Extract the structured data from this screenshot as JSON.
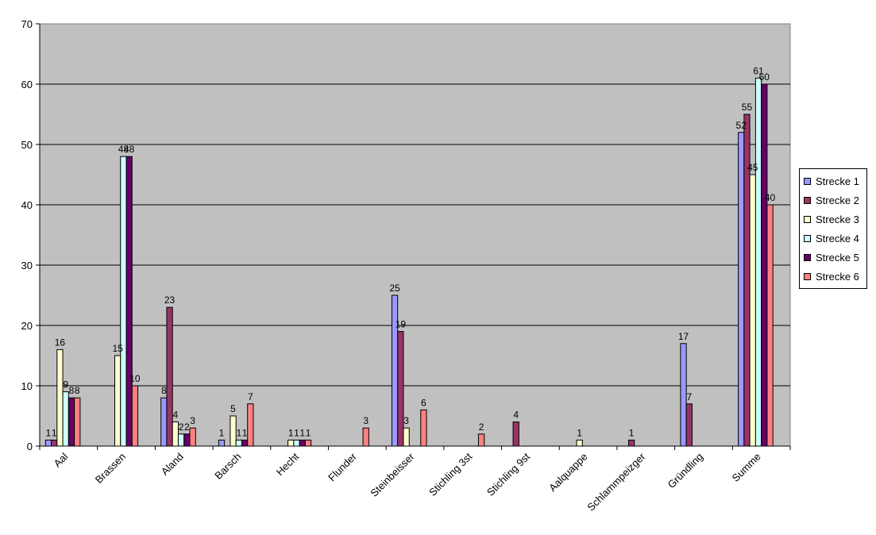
{
  "chart_data": {
    "type": "bar",
    "title": "",
    "xlabel": "",
    "ylabel": "",
    "ylim": [
      0,
      70
    ],
    "yticks": [
      0,
      10,
      20,
      30,
      40,
      50,
      60,
      70
    ],
    "grid": true,
    "legend_position": "right",
    "plot_background": "#c0c0c0",
    "categories": [
      "Aal",
      "Brassen",
      "Aland",
      "Barsch",
      "Hecht",
      "Flunder",
      "Steinbeisser",
      "Stichling 3st",
      "Stichling 9st",
      "Aalquappe",
      "Schlammpeizger",
      "Gründling",
      "Summe"
    ],
    "series": [
      {
        "name": "Strecke 1",
        "color": "#9999ff",
        "values": [
          1,
          null,
          8,
          1,
          null,
          null,
          25,
          null,
          null,
          null,
          null,
          17,
          52
        ]
      },
      {
        "name": "Strecke 2",
        "color": "#993366",
        "values": [
          1,
          null,
          23,
          null,
          null,
          null,
          19,
          null,
          4,
          null,
          1,
          7,
          55
        ]
      },
      {
        "name": "Strecke 3",
        "color": "#ffffcc",
        "values": [
          16,
          15,
          4,
          5,
          1,
          null,
          3,
          null,
          null,
          1,
          null,
          null,
          45
        ]
      },
      {
        "name": "Strecke 4",
        "color": "#ccffff",
        "values": [
          9,
          48,
          2,
          1,
          1,
          null,
          null,
          null,
          null,
          null,
          null,
          null,
          61
        ]
      },
      {
        "name": "Strecke 5",
        "color": "#660066",
        "values": [
          8,
          48,
          2,
          1,
          1,
          null,
          null,
          null,
          null,
          null,
          null,
          null,
          60
        ]
      },
      {
        "name": "Strecke 6",
        "color": "#ff8080",
        "values": [
          8,
          10,
          3,
          7,
          1,
          3,
          6,
          2,
          null,
          null,
          null,
          null,
          40
        ]
      }
    ]
  }
}
